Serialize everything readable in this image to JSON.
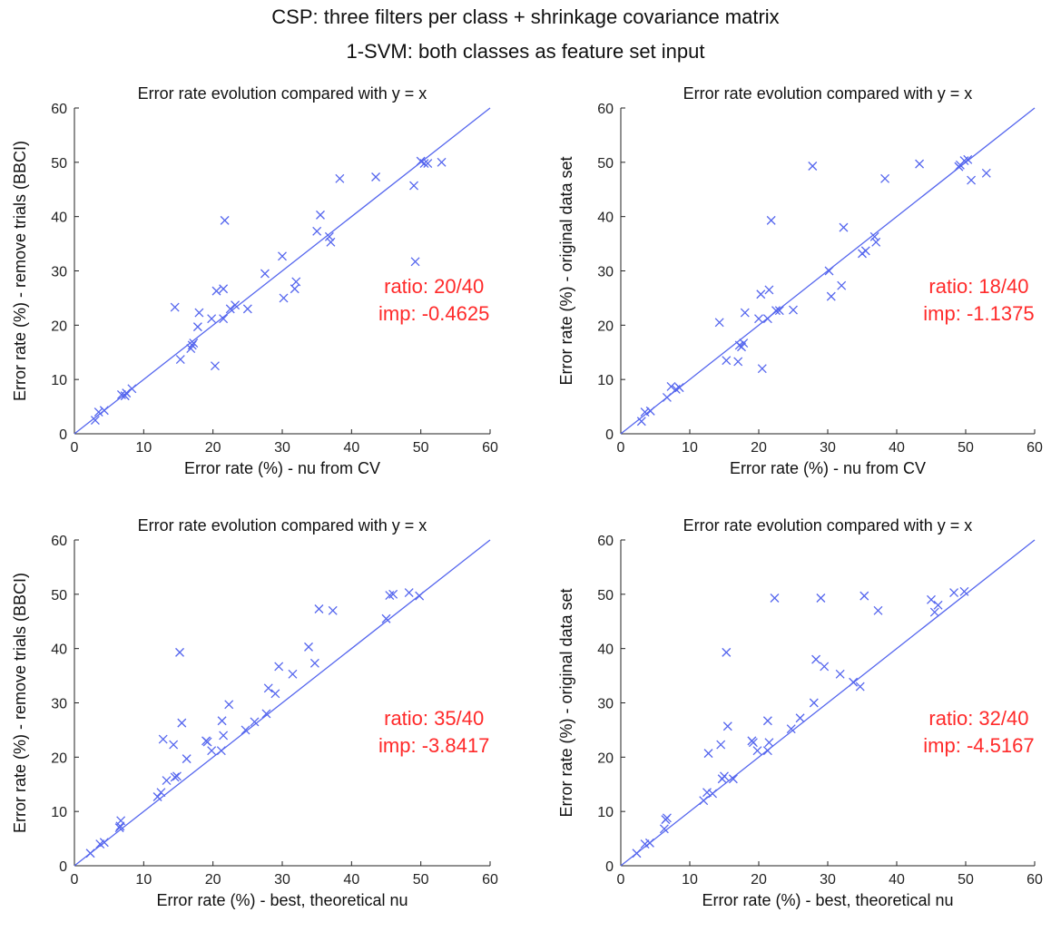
{
  "suptitle": [
    "CSP: three filters per class + shrinkage covariance matrix",
    "1-SVM: both classes as feature set input"
  ],
  "colors": {
    "marker": "#5566ee",
    "annotation": "#ff2a2a",
    "axis": "#222222"
  },
  "chart_data": [
    {
      "type": "scatter",
      "title": "Error rate evolution compared with y = x",
      "xlabel": "Error rate (%) - nu from CV",
      "ylabel": "Error rate (%) - remove trials (BBCI)",
      "xlim": [
        0,
        60
      ],
      "ylim": [
        0,
        60
      ],
      "xticks": [
        0,
        10,
        20,
        30,
        40,
        50,
        60
      ],
      "yticks": [
        0,
        10,
        20,
        30,
        40,
        50,
        60
      ],
      "reference_line": "y = x",
      "marker": "x",
      "annotation": [
        "ratio: 20/40",
        "imp: -0.4625"
      ],
      "points": [
        [
          3,
          2.5
        ],
        [
          3.5,
          4
        ],
        [
          4.3,
          4.3
        ],
        [
          6.8,
          7.2
        ],
        [
          7.3,
          7
        ],
        [
          7.5,
          7.5
        ],
        [
          8.3,
          8.3
        ],
        [
          14.5,
          23.3
        ],
        [
          15.3,
          13.7
        ],
        [
          16.8,
          15.7
        ],
        [
          17,
          16.3
        ],
        [
          17.2,
          16.7
        ],
        [
          17.8,
          19.7
        ],
        [
          18,
          22.3
        ],
        [
          19.8,
          21.2
        ],
        [
          20.3,
          12.5
        ],
        [
          20.5,
          26.3
        ],
        [
          21.5,
          26.7
        ],
        [
          21.5,
          21.2
        ],
        [
          21.7,
          39.3
        ],
        [
          22.5,
          23
        ],
        [
          23.2,
          23.7
        ],
        [
          25,
          23
        ],
        [
          27.5,
          29.5
        ],
        [
          30,
          32.7
        ],
        [
          30.2,
          25
        ],
        [
          31.8,
          26.7
        ],
        [
          32,
          28
        ],
        [
          35,
          37.3
        ],
        [
          35.5,
          40.3
        ],
        [
          36.8,
          36.3
        ],
        [
          37,
          35.3
        ],
        [
          38.3,
          47
        ],
        [
          43.5,
          47.3
        ],
        [
          49,
          45.7
        ],
        [
          49.2,
          31.7
        ],
        [
          50,
          50.2
        ],
        [
          50.5,
          49.8
        ],
        [
          51,
          49.8
        ],
        [
          53,
          50
        ]
      ]
    },
    {
      "type": "scatter",
      "title": "Error rate evolution compared with y = x",
      "xlabel": "Error rate (%) - nu from CV",
      "ylabel": "Error rate (%) - original data set",
      "xlim": [
        0,
        60
      ],
      "ylim": [
        0,
        60
      ],
      "xticks": [
        0,
        10,
        20,
        30,
        40,
        50,
        60
      ],
      "yticks": [
        0,
        10,
        20,
        30,
        40,
        50,
        60
      ],
      "reference_line": "y = x",
      "marker": "x",
      "annotation": [
        "ratio: 18/40",
        "imp: -1.1375"
      ],
      "points": [
        [
          3,
          2.3
        ],
        [
          3.5,
          4
        ],
        [
          4.3,
          4.2
        ],
        [
          6.7,
          6.7
        ],
        [
          7.3,
          8.7
        ],
        [
          8,
          8.2
        ],
        [
          8.5,
          8.5
        ],
        [
          14.3,
          20.5
        ],
        [
          15.3,
          13.5
        ],
        [
          17,
          13.3
        ],
        [
          17.2,
          16.3
        ],
        [
          17.5,
          16
        ],
        [
          17.8,
          16.7
        ],
        [
          18,
          22.3
        ],
        [
          20,
          21.2
        ],
        [
          20.3,
          25.7
        ],
        [
          20.5,
          12
        ],
        [
          21.3,
          21.2
        ],
        [
          21.5,
          26.5
        ],
        [
          21.8,
          39.3
        ],
        [
          22.5,
          22.7
        ],
        [
          23,
          22.7
        ],
        [
          25,
          22.8
        ],
        [
          27.8,
          49.3
        ],
        [
          30.2,
          30
        ],
        [
          30.5,
          25.3
        ],
        [
          32,
          27.3
        ],
        [
          32.3,
          38
        ],
        [
          35,
          33.2
        ],
        [
          35.5,
          33.7
        ],
        [
          36.8,
          36.3
        ],
        [
          37,
          35.3
        ],
        [
          38.3,
          47
        ],
        [
          43.3,
          49.7
        ],
        [
          49,
          49.2
        ],
        [
          49.2,
          49.5
        ],
        [
          49.8,
          50.3
        ],
        [
          50.3,
          50.5
        ],
        [
          50.8,
          46.7
        ],
        [
          53,
          48
        ]
      ]
    },
    {
      "type": "scatter",
      "title": "Error rate evolution compared with y = x",
      "xlabel": "Error rate (%) - best, theoretical nu",
      "ylabel": "Error rate (%) - remove trials (BBCI)",
      "xlim": [
        0,
        60
      ],
      "ylim": [
        0,
        60
      ],
      "xticks": [
        0,
        10,
        20,
        30,
        40,
        50,
        60
      ],
      "yticks": [
        0,
        10,
        20,
        30,
        40,
        50,
        60
      ],
      "reference_line": "y = x",
      "marker": "x",
      "annotation": [
        "ratio: 35/40",
        "imp: -3.8417"
      ],
      "points": [
        [
          2.3,
          2.3
        ],
        [
          3.7,
          4
        ],
        [
          4.3,
          4.3
        ],
        [
          6.5,
          7
        ],
        [
          6.6,
          7.3
        ],
        [
          6.7,
          8.3
        ],
        [
          12,
          12.7
        ],
        [
          12.5,
          13.5
        ],
        [
          12.8,
          23.3
        ],
        [
          13.3,
          15.7
        ],
        [
          14.3,
          22.3
        ],
        [
          14.5,
          16.3
        ],
        [
          14.8,
          16.5
        ],
        [
          15.2,
          39.3
        ],
        [
          15.5,
          26.3
        ],
        [
          16.2,
          19.7
        ],
        [
          19,
          23
        ],
        [
          19.2,
          22.8
        ],
        [
          19.8,
          21.2
        ],
        [
          21.2,
          21.2
        ],
        [
          21.3,
          26.7
        ],
        [
          21.5,
          24
        ],
        [
          22.3,
          29.7
        ],
        [
          24.7,
          25
        ],
        [
          26,
          26.5
        ],
        [
          27.7,
          28
        ],
        [
          28,
          32.7
        ],
        [
          29,
          31.7
        ],
        [
          29.5,
          36.7
        ],
        [
          31.5,
          35.3
        ],
        [
          33.8,
          40.3
        ],
        [
          34.7,
          37.3
        ],
        [
          35.3,
          47.3
        ],
        [
          37.3,
          47
        ],
        [
          45,
          45.5
        ],
        [
          45.5,
          49.8
        ],
        [
          46,
          50
        ],
        [
          48.3,
          50.3
        ],
        [
          49.8,
          49.7
        ]
      ]
    },
    {
      "type": "scatter",
      "title": "Error rate evolution compared with y = x",
      "xlabel": "Error rate (%) - best, theoretical nu",
      "ylabel": "Error rate (%) - original data set",
      "xlim": [
        0,
        60
      ],
      "ylim": [
        0,
        60
      ],
      "xticks": [
        0,
        10,
        20,
        30,
        40,
        50,
        60
      ],
      "yticks": [
        0,
        10,
        20,
        30,
        40,
        50,
        60
      ],
      "reference_line": "y = x",
      "marker": "x",
      "annotation": [
        "ratio: 32/40",
        "imp: -4.5167"
      ],
      "points": [
        [
          2.3,
          2.3
        ],
        [
          3.5,
          4
        ],
        [
          4.2,
          4.2
        ],
        [
          6.3,
          6.8
        ],
        [
          6.5,
          8.5
        ],
        [
          6.7,
          8.8
        ],
        [
          12,
          12
        ],
        [
          12.5,
          13.5
        ],
        [
          12.7,
          20.7
        ],
        [
          13.3,
          13.3
        ],
        [
          14.5,
          22.3
        ],
        [
          14.7,
          16
        ],
        [
          15,
          16.5
        ],
        [
          15.3,
          39.3
        ],
        [
          15.5,
          25.7
        ],
        [
          16.3,
          16
        ],
        [
          19,
          23
        ],
        [
          19.2,
          22.7
        ],
        [
          19.8,
          21.2
        ],
        [
          21.3,
          21.2
        ],
        [
          21.3,
          26.7
        ],
        [
          21.5,
          22.7
        ],
        [
          22.3,
          49.3
        ],
        [
          24.7,
          25.2
        ],
        [
          26,
          27.2
        ],
        [
          28,
          30
        ],
        [
          28.3,
          38
        ],
        [
          29,
          49.3
        ],
        [
          29.5,
          36.7
        ],
        [
          31.8,
          35.3
        ],
        [
          33.7,
          33.8
        ],
        [
          34.7,
          33
        ],
        [
          35.3,
          49.7
        ],
        [
          37.3,
          47
        ],
        [
          45,
          49
        ],
        [
          45.5,
          46.7
        ],
        [
          46,
          48
        ],
        [
          48.3,
          50.3
        ],
        [
          49.8,
          50.5
        ]
      ]
    }
  ]
}
